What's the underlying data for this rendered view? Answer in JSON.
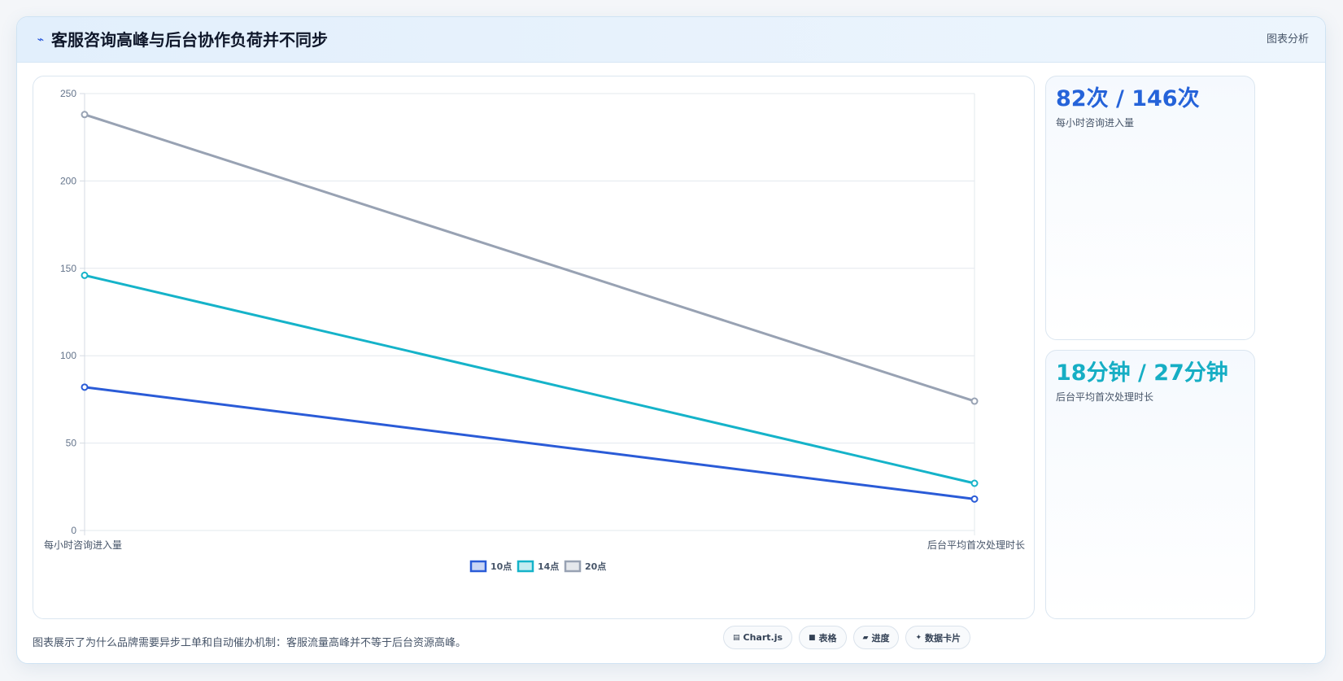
{
  "header": {
    "icon": "chart-line-icon",
    "icon_glyph": "⌁",
    "title": "客服咨询高峰与后台协作负荷并不同步",
    "tag": "图表分析"
  },
  "kpis": [
    {
      "value": "82次 / 146次",
      "label": "每小时咨询进入量",
      "color": "#2563d9"
    },
    {
      "value": "18分钟 / 27分钟",
      "label": "后台平均首次处理时长",
      "color": "#16aec4"
    }
  ],
  "footer": {
    "note": "图表展示了为什么品牌需要异步工单和自动催办机制：客服流量高峰并不等于后台资源高峰。",
    "chips": [
      {
        "icon": "chart-js-icon",
        "glyph": "▤",
        "label": "Chart.js"
      },
      {
        "icon": "table-icon",
        "glyph": "■",
        "label": "表格"
      },
      {
        "icon": "progress-icon",
        "glyph": "▰",
        "label": "进度"
      },
      {
        "icon": "data-card-icon",
        "glyph": "✦",
        "label": "数据卡片"
      }
    ]
  },
  "chart_data": {
    "type": "line",
    "categories": [
      "每小时咨询进入量",
      "后台平均首次处理时长"
    ],
    "series": [
      {
        "name": "10点",
        "values": [
          82,
          18
        ],
        "color": "#2a5bd7"
      },
      {
        "name": "14点",
        "values": [
          146,
          27
        ],
        "color": "#15b3c9"
      },
      {
        "name": "20点",
        "values": [
          238,
          74
        ],
        "color": "#98a2b3"
      }
    ],
    "ylim": [
      0,
      250
    ],
    "yticks": [
      0,
      50,
      100,
      150,
      200,
      250
    ],
    "grid": true,
    "legend": "bottom-center"
  }
}
